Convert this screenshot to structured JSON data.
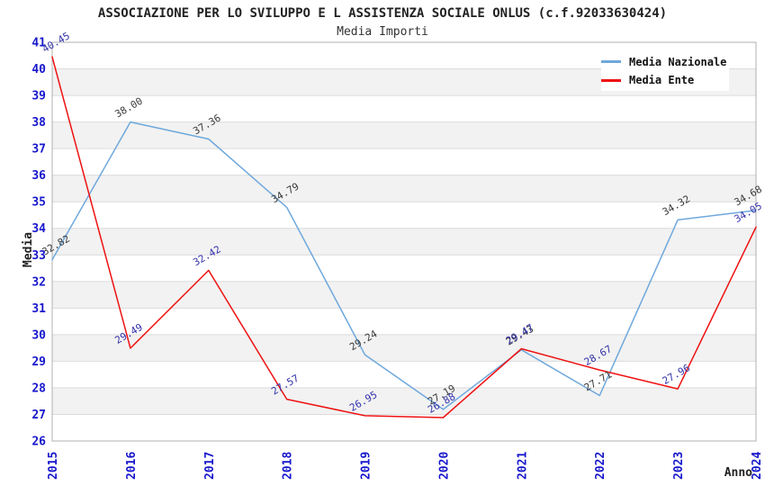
{
  "header": {
    "title": "ASSOCIAZIONE PER LO SVILUPPO E L ASSISTENZA SOCIALE ONLUS (c.f.92033630424)",
    "subtitle": "Media Importi"
  },
  "legend": {
    "items": [
      {
        "label": "Media Nazionale",
        "color": "#6fa8dc"
      },
      {
        "label": "Media Ente",
        "color": "#ee1111"
      }
    ]
  },
  "chart_data": {
    "type": "line",
    "title": "ASSOCIAZIONE PER LO SVILUPPO E L ASSISTENZA SOCIALE ONLUS (c.f.92033630424)",
    "subtitle": "Media Importi",
    "xlabel": "Anno",
    "ylabel": "Media",
    "x": [
      "2015",
      "2016",
      "2017",
      "2018",
      "2019",
      "2020",
      "2021",
      "2022",
      "2023",
      "2024"
    ],
    "series": [
      {
        "name": "Media Nazionale",
        "color": "#6fa8dc",
        "label_color": "#3a3a3a",
        "values": [
          32.82,
          38.0,
          37.36,
          34.79,
          29.24,
          27.19,
          29.43,
          27.71,
          34.32,
          34.68
        ]
      },
      {
        "name": "Media Ente",
        "color": "#ee1111",
        "label_color": "#3333aa",
        "values": [
          40.45,
          29.49,
          32.42,
          27.57,
          26.95,
          26.88,
          29.47,
          28.67,
          27.96,
          34.05
        ]
      }
    ],
    "ylim": [
      26,
      41
    ],
    "ytick_step": 1,
    "grid": true,
    "legend_position": "top-right",
    "band_color": "#f2f2f2",
    "gridline_color": "#dcdcdc",
    "border_color": "#b0b0b0",
    "tick_label_color": "#1717cc",
    "axis_label_color": "#222222"
  }
}
